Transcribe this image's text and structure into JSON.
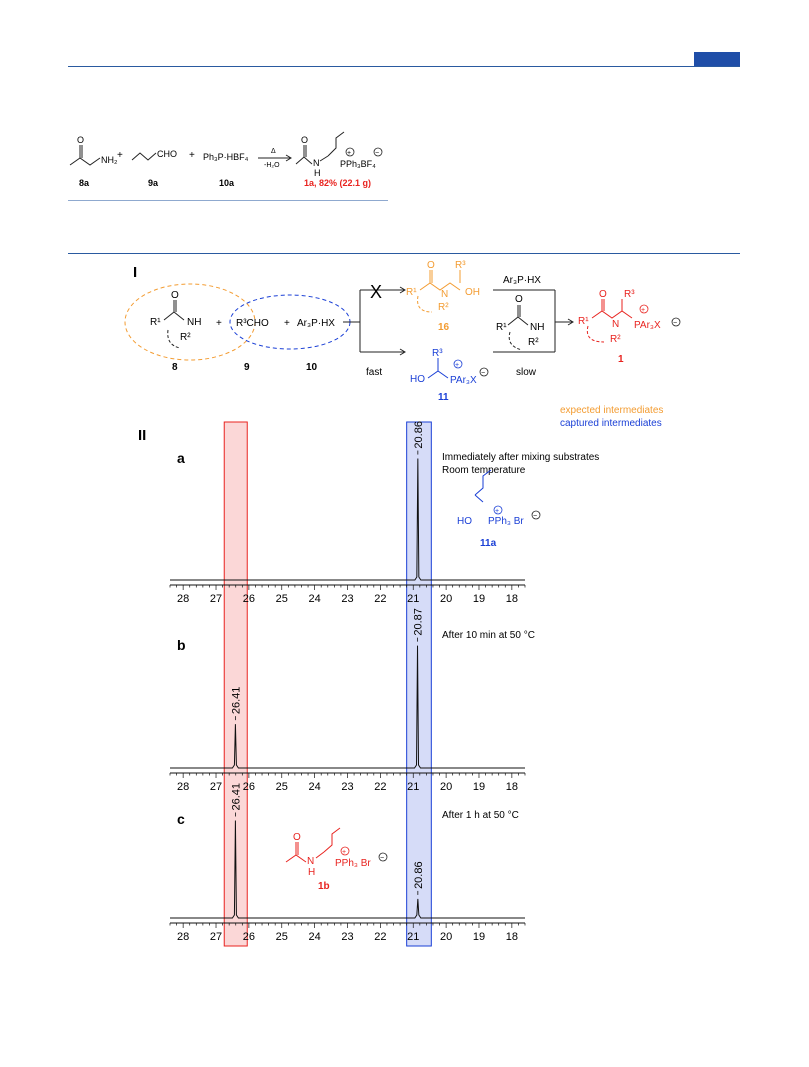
{
  "header_rule_color": "#2a5aa0",
  "accent_tab_color": "#1f4ea8",
  "scheme_top": {
    "plus": "+",
    "delta": "Δ",
    "minus_water": "-H₂O",
    "reagent_10": "Ph₃P·HBF₄",
    "aldehyde_group": "CHO",
    "amide_group": "NH₂",
    "product_cation": "PPh₃BF₄",
    "product_nh": "N",
    "product_h": "H",
    "product_o": "O",
    "label_8a": "8a",
    "label_9a": "9a",
    "label_10a": "10a",
    "label_1a": "1a, 82% (22.1 g)"
  },
  "panel_I": {
    "label": "I",
    "cmpd_8": "8",
    "cmpd_9": "9",
    "cmpd_10": "10",
    "cmpd_16": "16",
    "cmpd_11": "11",
    "cmpd_1": "1",
    "r3cho": "R³CHO",
    "ar3phx": "Ar₃P·HX",
    "ar3phx_top": "Ar₃P·HX",
    "fast": "fast",
    "slow": "slow",
    "blocked_mark": "X",
    "ho": "HO",
    "oh": "OH",
    "nh": "NH",
    "n": "N",
    "o": "O",
    "r1": "R¹",
    "r2": "R²",
    "r3": "R³",
    "par3x": "PAr₃X",
    "legend_expected": "expected intermediates",
    "legend_captured": "captured intermediates",
    "color_expected": "#f39c32",
    "color_captured": "#1a3fd6",
    "color_product": "#e8231f"
  },
  "panel_II": {
    "label": "II",
    "x_ticks": [
      "28",
      "27",
      "26",
      "25",
      "24",
      "23",
      "22",
      "21",
      "20",
      "19",
      "18"
    ],
    "spectra": [
      {
        "id": "a",
        "caption_1": "Immediately after mixing substrates",
        "caption_2": "Room temperature",
        "peaks": [
          {
            "ppm": 20.86,
            "label": "20.86",
            "rel_height": 0.92
          }
        ]
      },
      {
        "id": "b",
        "caption_1": "After 10 min at 50 °C",
        "caption_2": "",
        "peaks": [
          {
            "ppm": 26.41,
            "label": "26.41",
            "rel_height": 0.33
          },
          {
            "ppm": 20.87,
            "label": "20.87",
            "rel_height": 0.92
          }
        ]
      },
      {
        "id": "c",
        "caption_1": "After 1 h at 50 °C",
        "caption_2": "",
        "peaks": [
          {
            "ppm": 26.41,
            "label": "26.41",
            "rel_height": 0.92
          },
          {
            "ppm": 20.86,
            "label": "20.86",
            "rel_height": 0.18
          }
        ]
      }
    ],
    "compound_11a": {
      "label": "11a",
      "ho": "HO",
      "pph3br": "PPh₃ Br",
      "color": "#1a3fd6"
    },
    "compound_1b": {
      "label": "1b",
      "o": "O",
      "n": "N",
      "h": "H",
      "pph3br": "PPh₃ Br",
      "color": "#e8231f"
    },
    "highlight_red": "#e8231f",
    "highlight_blue": "#1a3fd6"
  }
}
